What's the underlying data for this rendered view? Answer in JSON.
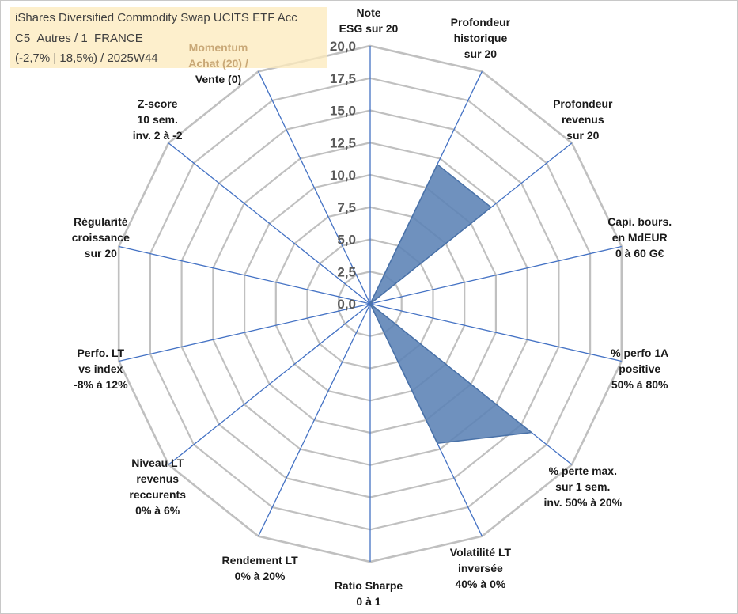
{
  "info": {
    "line1": "iShares Diversified Commodity Swap UCITS ETF Acc",
    "line2": "C5_Autres / 1_FRANCE",
    "line3": "(-2,7% | 18,5%) / 2025W44"
  },
  "colors": {
    "grid": "#c0c0c0",
    "spokes": "#4472c4",
    "fill": "#5b82b5",
    "fill_edge": "#4a72a8",
    "tick_text": "#595959",
    "info_bg": "#fdebbe",
    "momentum_text": "#c9a877"
  },
  "chart_data": {
    "type": "radar",
    "rmin": 0,
    "rmax": 20,
    "ticks": [
      "0,0",
      "2,5",
      "5,0",
      "7,5",
      "10,0",
      "12,5",
      "15,0",
      "17,5",
      "20,0"
    ],
    "grid": true,
    "legend": "none",
    "axes": [
      {
        "lines": [
          "Note",
          "ESG sur 20"
        ],
        "value": 0
      },
      {
        "lines": [
          "Profondeur",
          "historique",
          "sur 20"
        ],
        "value": 12
      },
      {
        "lines": [
          "Profondeur",
          "revenus",
          "sur 20"
        ],
        "value": 12
      },
      {
        "lines": [
          "Capi. bours.",
          "en MdEUR",
          "0 à 60 G€"
        ],
        "value": 0
      },
      {
        "lines": [
          "% perfo 1A",
          "positive",
          "50% à 80%"
        ],
        "value": 0
      },
      {
        "lines": [
          "% perte max.",
          "sur 1 sem.",
          "inv. 50% à 20%"
        ],
        "value": 16
      },
      {
        "lines": [
          "Volatilité LT",
          "inversée",
          "40% à 0%"
        ],
        "value": 12
      },
      {
        "lines": [
          "Ratio Sharpe",
          "0 à 1"
        ],
        "value": 0
      },
      {
        "lines": [
          "Rendement LT",
          "0% à 20%"
        ],
        "value": 0
      },
      {
        "lines": [
          "Niveau LT",
          "revenus",
          "reccurents",
          "0% à 6%"
        ],
        "value": 0
      },
      {
        "lines": [
          "Perfo. LT",
          "vs index",
          "-8% à 12%"
        ],
        "value": 0
      },
      {
        "lines": [
          "Régularité",
          "croissance",
          "sur 20"
        ],
        "value": 0
      },
      {
        "lines": [
          "Z-score",
          "10 sem.",
          "inv. 2 à -2"
        ],
        "value": 0
      },
      {
        "lines": [
          "Momentum",
          "Achat (20) /",
          "Vente (0)"
        ],
        "value": 0
      }
    ]
  }
}
